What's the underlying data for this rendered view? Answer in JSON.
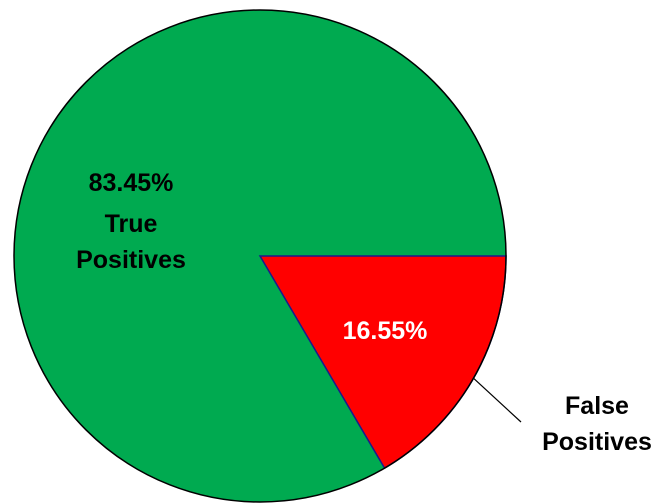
{
  "chart_data": {
    "type": "pie",
    "slices": [
      {
        "label": "True Positives",
        "label_lines": [
          "True",
          "Positives"
        ],
        "value": 83.45,
        "value_text": "83.45%",
        "color": "#00AA50"
      },
      {
        "label": "False Positives",
        "label_lines": [
          "False",
          "Positives"
        ],
        "value": 16.55,
        "value_text": "16.55%",
        "color": "#FF0000"
      }
    ],
    "start_angle": "3 o'clock",
    "direction": "clockwise for the red slice",
    "outline_color": "#000000",
    "slice_border_color": "#1a1a8c"
  }
}
